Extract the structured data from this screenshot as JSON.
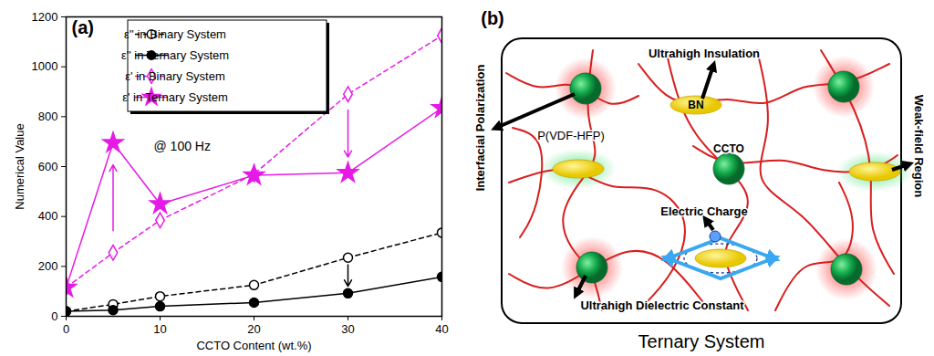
{
  "chart_data": {
    "type": "line",
    "x_label": "CCTO Content (wt.%)",
    "y_label": "Numerical Value",
    "annotations": [
      "(a)",
      "@ 100 Hz"
    ],
    "x": [
      0,
      5,
      10,
      20,
      30,
      40
    ],
    "series": [
      {
        "name": "ε'' in Binary System",
        "color": "#000000",
        "marker": "open_circle",
        "line_style": "dashed",
        "values": [
          20,
          48,
          80,
          125,
          235,
          335
        ]
      },
      {
        "name": "ε'' in Ternary System",
        "color": "#000000",
        "marker": "circle",
        "line_style": "solid",
        "values": [
          20,
          25,
          40,
          55,
          92,
          158
        ]
      },
      {
        "name": "ε' in Binary System",
        "color": "#e61ae6",
        "marker": "open_diamond",
        "line_style": "dashed",
        "values": [
          115,
          255,
          385,
          570,
          890,
          1125
        ]
      },
      {
        "name": "ε' in Ternary System",
        "color": "#e61ae6",
        "marker": "star",
        "line_style": "solid",
        "values": [
          115,
          695,
          450,
          565,
          575,
          835
        ]
      }
    ],
    "xlim": [
      0,
      40
    ],
    "xticks": [
      0,
      10,
      20,
      30,
      40
    ],
    "ylim": [
      0,
      1200
    ],
    "yticks": [
      0,
      200,
      400,
      600,
      800,
      1000,
      1200
    ],
    "grid": false,
    "legend": "top-left"
  },
  "diagram": {
    "panel_label": "(b)",
    "caption": "Ternary System",
    "labels": {
      "insulation": "Ultrahigh Insulation",
      "bn": "BN",
      "polymer": "P(VDF-HFP)",
      "ccto": "CCTO",
      "charge": "Electric Charge",
      "dielectric": "Ultrahigh Dielectric Constant",
      "polarization": "Interfacial Polarization",
      "weak_field": "Weak-field Region"
    }
  }
}
